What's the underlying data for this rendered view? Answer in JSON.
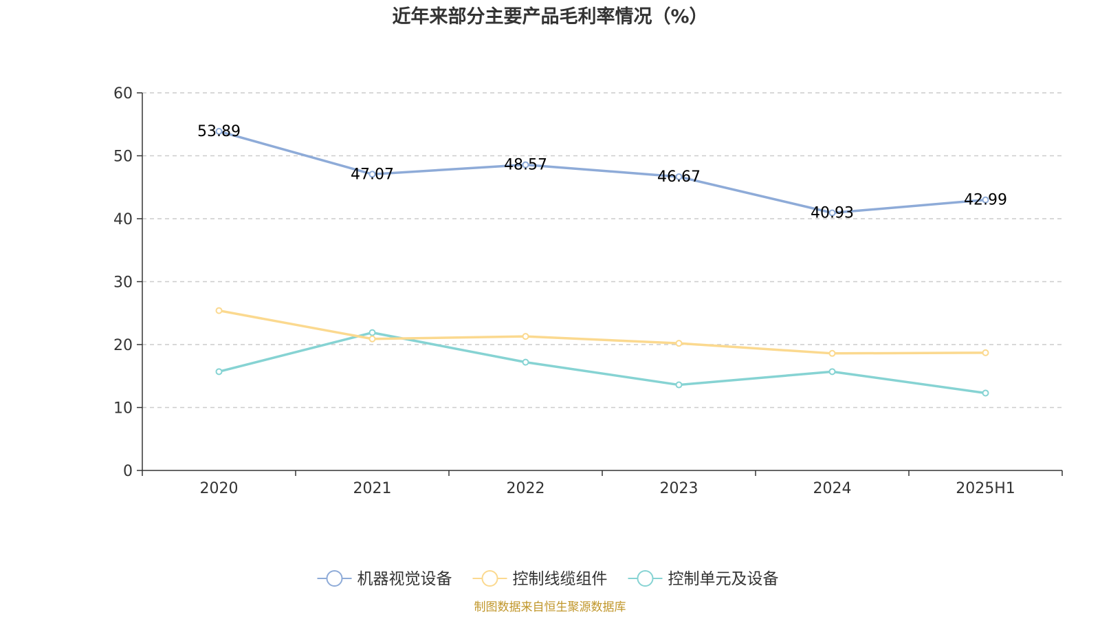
{
  "chart_data": {
    "type": "line",
    "title": "近年来部分主要产品毛利率情况（%）",
    "categories": [
      "2020",
      "2021",
      "2022",
      "2023",
      "2024",
      "2025H1"
    ],
    "ylim": [
      0,
      60
    ],
    "yticks": [
      0,
      10,
      20,
      30,
      40,
      50,
      60
    ],
    "grid": true,
    "legend_position": "bottom",
    "series": [
      {
        "name": "机器视觉设备",
        "color": "#8eabd8",
        "values": [
          53.89,
          47.07,
          48.57,
          46.67,
          40.93,
          42.99
        ],
        "show_labels": true
      },
      {
        "name": "控制线缆组件",
        "color": "#fbd98f",
        "values": [
          25.4,
          20.9,
          21.3,
          20.2,
          18.6,
          18.7
        ],
        "show_labels": false
      },
      {
        "name": "控制单元及设备",
        "color": "#86d3d3",
        "values": [
          15.7,
          21.9,
          17.2,
          13.6,
          15.7,
          12.3
        ],
        "show_labels": false
      }
    ]
  },
  "source_text": "制图数据来自恒生聚源数据库"
}
